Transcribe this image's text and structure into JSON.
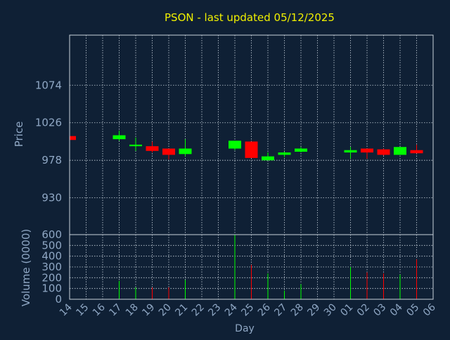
{
  "chart_data": {
    "type": "candlestick",
    "title": "PSON - last updated 05/12/2025",
    "xlabel": "Day",
    "price_panel": {
      "ylabel": "Price",
      "ylim": [
        883,
        1138
      ],
      "yticks": [
        930,
        978,
        1026,
        1074
      ],
      "grid": true
    },
    "volume_panel": {
      "ylabel": "Volume (0000)",
      "ylim": [
        0,
        600
      ],
      "yticks": [
        0,
        100,
        200,
        300,
        400,
        500,
        600
      ],
      "grid": true
    },
    "x_tick_labels": [
      "14",
      "15",
      "16",
      "17",
      "18",
      "19",
      "20",
      "21",
      "22",
      "23",
      "24",
      "25",
      "26",
      "27",
      "28",
      "29",
      "30",
      "01",
      "02",
      "03",
      "04",
      "05",
      "06"
    ],
    "candles": [
      {
        "day": "14",
        "open": 1009,
        "close": 1004,
        "high": 1009,
        "low": 1004,
        "volume": 0
      },
      {
        "day": "17",
        "open": 1005,
        "close": 1010,
        "high": 1016,
        "low": 1003,
        "volume": 170
      },
      {
        "day": "18",
        "open": 996,
        "close": 998,
        "high": 1007,
        "low": 990,
        "volume": 110
      },
      {
        "day": "19",
        "open": 996,
        "close": 990,
        "high": 1002,
        "low": 988,
        "volume": 110
      },
      {
        "day": "20",
        "open": 993,
        "close": 985,
        "high": 993,
        "low": 979,
        "volume": 110
      },
      {
        "day": "21",
        "open": 986,
        "close": 993,
        "high": 1005,
        "low": 983,
        "volume": 180
      },
      {
        "day": "24",
        "open": 993,
        "close": 1003,
        "high": 1003,
        "low": 991,
        "volume": 600
      },
      {
        "day": "25",
        "open": 1002,
        "close": 981,
        "high": 1002,
        "low": 981,
        "volume": 320
      },
      {
        "day": "26",
        "open": 978,
        "close": 983,
        "high": 988,
        "low": 978,
        "volume": 240
      },
      {
        "day": "27",
        "open": 985,
        "close": 988,
        "high": 989,
        "low": 982,
        "volume": 80
      },
      {
        "day": "28",
        "open": 989,
        "close": 993,
        "high": 995,
        "low": 988,
        "volume": 140
      },
      {
        "day": "01",
        "open": 988,
        "close": 991,
        "high": 995,
        "low": 980,
        "volume": 300
      },
      {
        "day": "02",
        "open": 993,
        "close": 988,
        "high": 993,
        "low": 980,
        "volume": 250
      },
      {
        "day": "03",
        "open": 992,
        "close": 985,
        "high": 993,
        "low": 984,
        "volume": 240
      },
      {
        "day": "04",
        "open": 985,
        "close": 995,
        "high": 995,
        "low": 985,
        "volume": 230
      },
      {
        "day": "05",
        "open": 991,
        "close": 987,
        "high": 998,
        "low": 987,
        "volume": 370
      }
    ]
  },
  "colors": {
    "background": "#0f2035",
    "title": "#f0f000",
    "axis_text": "#8fa7c4",
    "grid": "#c8d2dc",
    "frame": "#c8d2dc",
    "up": "#00ff00",
    "down": "#ff0000"
  }
}
